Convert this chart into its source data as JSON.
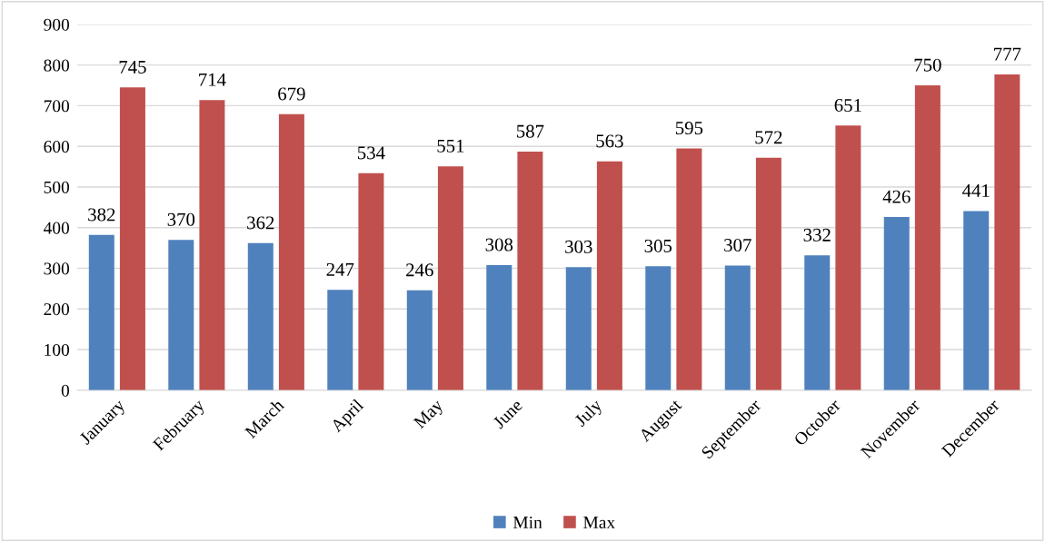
{
  "chart_data": {
    "type": "bar",
    "categories": [
      "January",
      "February",
      "March",
      "April",
      "May",
      "June",
      "July",
      "August",
      "September",
      "October",
      "November",
      "December"
    ],
    "series": [
      {
        "name": "Min",
        "color": "#4f81bd",
        "values": [
          382,
          370,
          362,
          247,
          246,
          308,
          303,
          305,
          307,
          332,
          426,
          441
        ]
      },
      {
        "name": "Max",
        "color": "#c0504d",
        "values": [
          745,
          714,
          679,
          534,
          551,
          587,
          563,
          595,
          572,
          651,
          750,
          777
        ]
      }
    ],
    "ylim": [
      0,
      900
    ],
    "yticks": [
      0,
      100,
      200,
      300,
      400,
      500,
      600,
      700,
      800,
      900
    ],
    "grid": "y",
    "legend": "bottom",
    "data_labels": true
  }
}
